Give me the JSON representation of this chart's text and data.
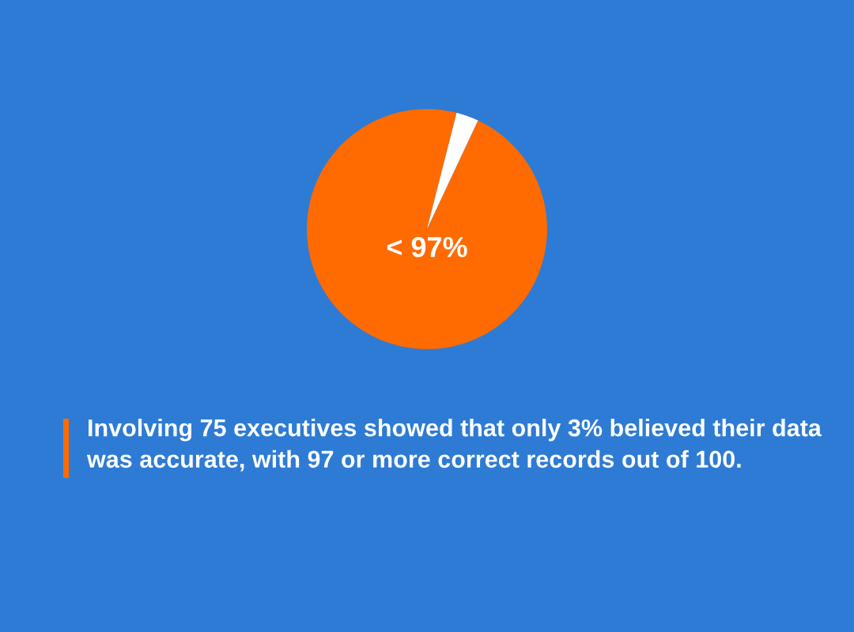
{
  "chart_data": {
    "type": "pie",
    "categories": [
      "< 97%",
      null
    ],
    "values": [
      97,
      3
    ],
    "colors": [
      "#ff6b00",
      "#ffffff"
    ],
    "annotations": [
      "Involving 75 executives showed that only 3% believed their data was accurate, with 97 or more correct records out of 100."
    ]
  }
}
